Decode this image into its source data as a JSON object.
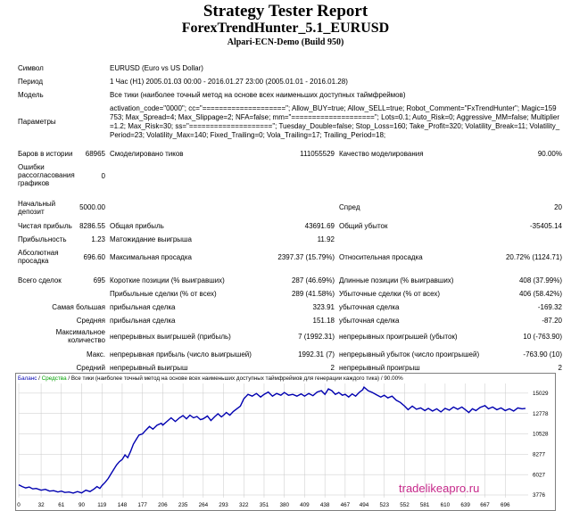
{
  "header": {
    "title": "Strategy Tester Report",
    "subtitle": "ForexTrendHunter_5.1_EURUSD",
    "server": "Alpari-ECN-Demo (Build 950)"
  },
  "info": {
    "symbol_label": "Символ",
    "symbol_value": "EURUSD (Euro vs US Dollar)",
    "period_label": "Период",
    "period_value": "1 Час (H1) 2005.01.03 00:00 - 2016.01.27 23:00 (2005.01.01 - 2016.01.28)",
    "model_label": "Модель",
    "model_value": "Все тики (наиболее точный метод на основе всех наименьших доступных таймфреймов)",
    "params_label": "Параметры",
    "params_value": "activation_code=\"0000\"; cc=\"====================\"; Allow_BUY=true; Allow_SELL=true; Robot_Comment=\"FxTrendHunter\"; Magic=159753; Max_Spread=4; Max_Slippage=2; NFA=false; mm=\"====================\"; Lots=0.1; Auto_Risk=0; Aggressive_MM=false; Multiplier=1.2; Max_Risk=30; ss=\"====================\"; Tuesday_Double=false; Stop_Loss=160; Take_Profit=320; Volatility_Break=11; Volatility_Period=23; Volatility_Max=140; Fixed_Trailing=0; Vola_Trailing=17; Trailing_Period=18;"
  },
  "stats": {
    "bars_label": "Баров в истории",
    "bars_value": "68965",
    "ticks_label": "Смоделировано тиков",
    "ticks_value": "111055529",
    "quality_label": "Качество моделирования",
    "quality_value": "90.00%",
    "errors_label": "Ошибки рассогласования графиков",
    "errors_value": "0",
    "deposit_label": "Начальный депозит",
    "deposit_value": "5000.00",
    "spread_label": "Спред",
    "spread_value": "20",
    "net_label": "Чистая прибыль",
    "net_value": "8286.55",
    "gross_profit_label": "Общая прибыль",
    "gross_profit_value": "43691.69",
    "gross_loss_label": "Общий убыток",
    "gross_loss_value": "-35405.14",
    "pf_label": "Прибыльность",
    "pf_value": "1.23",
    "payoff_label": "Матожидание выигрыша",
    "payoff_value": "11.92",
    "abs_dd_label": "Абсолютная просадка",
    "abs_dd_value": "696.60",
    "max_dd_label": "Максимальная просадка",
    "max_dd_value": "2397.37 (15.79%)",
    "rel_dd_label": "Относительная просадка",
    "rel_dd_value": "20.72% (1124.71)",
    "total_label": "Всего сделок",
    "total_value": "695",
    "short_label": "Короткие позиции (% выигравших)",
    "short_value": "287 (46.69%)",
    "long_label": "Длинные позиции (% выигравших)",
    "long_value": "408 (37.99%)",
    "win_label": "Прибыльные сделки (% от всех)",
    "win_value": "289 (41.58%)",
    "lose_label": "Убыточные сделки (% от всех)",
    "lose_value": "406 (58.42%)",
    "largest_label": "Самая большая",
    "largest_win_label": "прибыльная сделка",
    "largest_win_value": "323.91",
    "largest_loss_label": "убыточная сделка",
    "largest_loss_value": "-169.32",
    "avg_label": "Средняя",
    "avg_win_label": "прибыльная сделка",
    "avg_win_value": "151.18",
    "avg_loss_label": "убыточная сделка",
    "avg_loss_value": "-87.20",
    "maxcount_label": "Максимальное количество",
    "cons_win_label": "непрерывных выигрышей (прибыль)",
    "cons_win_value": "7 (1992.31)",
    "cons_loss_label": "непрерывных проигрышей (убыток)",
    "cons_loss_value": "10 (-763.90)",
    "max_label": "Макс.",
    "cons_profit_label": "непрерывная прибыль (число выигрышей)",
    "cons_profit_value": "1992.31 (7)",
    "cons_lossamt_label": "непрерывный убыток (число проигрышей)",
    "cons_lossamt_value": "-763.90 (10)",
    "avgcons_label": "Средний",
    "avg_cons_win_label": "непрерывный выигрыш",
    "avg_cons_win_value": "2",
    "avg_cons_loss_label": "непрерывный проигрыш",
    "avg_cons_loss_value": "2"
  },
  "chart_data": {
    "type": "line",
    "legend": {
      "balance": "Баланс",
      "sep1": " / ",
      "equity": "Средства",
      "sep2": " / ",
      "model": "Все тики (наиболее точный метод на основе всех наименьших доступных таймфреймов для генерации каждого тика)",
      "sep3": " / ",
      "quality": "90.00%"
    },
    "colors": {
      "balance": "#0000b0",
      "equity": "#00a000",
      "grid": "#c8c8c8"
    },
    "xlim": [
      0,
      725
    ],
    "ylim": [
      3776,
      16100
    ],
    "x_ticks": [
      0,
      32,
      61,
      90,
      119,
      148,
      177,
      206,
      235,
      264,
      293,
      322,
      351,
      380,
      409,
      438,
      467,
      494,
      523,
      552,
      581,
      610,
      639,
      667,
      696
    ],
    "y_ticks": [
      3776,
      6027,
      8277,
      10528,
      12778,
      15029
    ],
    "series": [
      {
        "name": "Баланс",
        "x": [
          0,
          5,
          10,
          15,
          20,
          25,
          32,
          38,
          44,
          50,
          56,
          61,
          66,
          72,
          78,
          84,
          90,
          96,
          102,
          108,
          112,
          116,
          119,
          124,
          128,
          132,
          136,
          140,
          144,
          148,
          152,
          156,
          160,
          164,
          168,
          172,
          177,
          182,
          187,
          192,
          198,
          204,
          206,
          212,
          218,
          224,
          230,
          235,
          240,
          245,
          250,
          255,
          260,
          264,
          270,
          275,
          280,
          285,
          290,
          293,
          297,
          302,
          307,
          312,
          317,
          322,
          328,
          334,
          340,
          346,
          351,
          357,
          363,
          369,
          375,
          380,
          386,
          392,
          398,
          404,
          409,
          415,
          421,
          427,
          433,
          438,
          443,
          448,
          453,
          458,
          463,
          467,
          472,
          477,
          482,
          487,
          492,
          494,
          500,
          506,
          512,
          518,
          523,
          528,
          534,
          540,
          546,
          552,
          557,
          563,
          569,
          575,
          581,
          586,
          592,
          598,
          604,
          610,
          616,
          622,
          628,
          634,
          639,
          644,
          649,
          654,
          660,
          667,
          672,
          678,
          684,
          690,
          696,
          702,
          708,
          714,
          720,
          725
        ],
        "y": [
          4900,
          4700,
          4550,
          4650,
          4450,
          4500,
          4300,
          4400,
          4200,
          4250,
          4100,
          4200,
          4050,
          4100,
          3980,
          4150,
          4000,
          4300,
          4150,
          4450,
          4700,
          4500,
          4800,
          5200,
          5600,
          6100,
          6600,
          7100,
          7450,
          7700,
          8200,
          7900,
          8600,
          9400,
          9900,
          10400,
          10528,
          10950,
          11350,
          11050,
          11500,
          11700,
          11500,
          11900,
          12300,
          11900,
          12300,
          12550,
          12200,
          12600,
          12300,
          12450,
          12100,
          12200,
          12500,
          12000,
          12400,
          12750,
          12400,
          12600,
          12900,
          12600,
          13000,
          13300,
          13600,
          14400,
          14900,
          14700,
          15000,
          14600,
          14900,
          15150,
          14700,
          15000,
          14800,
          15100,
          14800,
          14900,
          14700,
          14950,
          14700,
          15000,
          14750,
          15150,
          15300,
          14900,
          15500,
          15300,
          14900,
          15100,
          14800,
          14900,
          14600,
          14950,
          14700,
          15100,
          15400,
          15700,
          15300,
          15100,
          14850,
          14600,
          14800,
          14500,
          14700,
          14250,
          14000,
          13600,
          13200,
          13600,
          13250,
          13400,
          13100,
          13350,
          13050,
          13300,
          12950,
          13350,
          13150,
          13500,
          13250,
          13500,
          13200,
          12900,
          13300,
          13100,
          13450,
          13650,
          13300,
          13500,
          13200,
          13400,
          13100,
          13300,
          13050,
          13400,
          13300,
          13350
        ]
      }
    ]
  },
  "watermark": "tradelikeapro.ru"
}
